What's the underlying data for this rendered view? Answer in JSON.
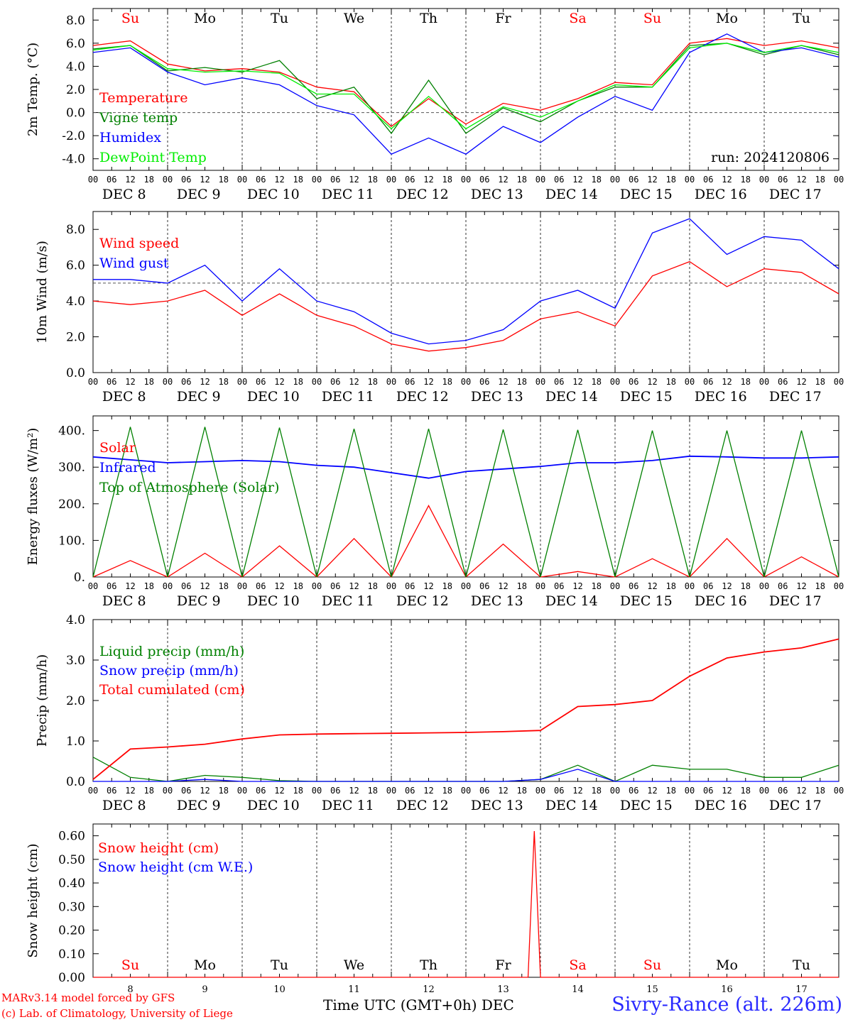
{
  "chart_data": [
    {
      "type": "line",
      "ylabel": "2m Temp. (°C)",
      "ylim": [
        -5.0,
        9.0
      ],
      "yticks": [
        "8.0",
        "6.0",
        "4.0",
        "2.0",
        "0.0",
        "-2.0",
        "-4.0"
      ],
      "ytick_values": [
        8,
        6,
        4,
        2,
        0,
        -2,
        -4
      ],
      "ref_line": 0,
      "day_labels_top": [
        "Su",
        "Mo",
        "Tu",
        "We",
        "Th",
        "Fr",
        "Sa",
        "Su",
        "Mo",
        "Tu"
      ],
      "day_label_colors": [
        "#ff0000",
        "#000000",
        "#000000",
        "#000000",
        "#000000",
        "#000000",
        "#ff0000",
        "#ff0000",
        "#000000",
        "#000000"
      ],
      "annotation": "run: 2024120806",
      "x": [
        "DEC 8 00",
        "DEC 8 12",
        "DEC 9 00",
        "DEC 9 12",
        "DEC 10 00",
        "DEC 10 12",
        "DEC 11 00",
        "DEC 11 12",
        "DEC 12 00",
        "DEC 12 12",
        "DEC 13 00",
        "DEC 13 12",
        "DEC 14 00",
        "DEC 14 12",
        "DEC 15 00",
        "DEC 15 12",
        "DEC 16 00",
        "DEC 16 12",
        "DEC 17 00",
        "DEC 17 12",
        "DEC 18 00"
      ],
      "series": [
        {
          "name": "Temperature",
          "color": "#ff0000",
          "values": [
            5.8,
            6.2,
            4.2,
            3.6,
            3.8,
            3.5,
            2.2,
            1.8,
            -1.2,
            1.2,
            -1.0,
            0.8,
            0.2,
            1.2,
            2.6,
            2.4,
            6.0,
            6.4,
            5.8,
            6.2,
            5.6
          ]
        },
        {
          "name": "Vigne temp",
          "color": "#008000",
          "values": [
            5.5,
            5.8,
            3.6,
            3.9,
            3.5,
            4.5,
            1.2,
            2.2,
            -1.8,
            2.8,
            -1.8,
            0.4,
            -0.8,
            1.0,
            2.2,
            2.2,
            5.8,
            6.0,
            5.0,
            5.8,
            5.0
          ]
        },
        {
          "name": "Humidex",
          "color": "#0000ff",
          "values": [
            5.2,
            5.6,
            3.5,
            2.4,
            3.0,
            2.4,
            0.6,
            -0.2,
            -3.6,
            -2.2,
            -3.6,
            -1.2,
            -2.6,
            -0.4,
            1.4,
            0.2,
            5.2,
            6.8,
            5.2,
            5.6,
            4.8
          ]
        },
        {
          "name": "DewPoint Temp",
          "color": "#00ee00",
          "values": [
            5.4,
            5.8,
            3.8,
            3.5,
            3.6,
            3.4,
            1.6,
            1.6,
            -1.4,
            1.4,
            -1.4,
            0.5,
            -0.4,
            1.0,
            2.4,
            2.2,
            5.6,
            6.0,
            5.2,
            5.8,
            5.2
          ]
        }
      ]
    },
    {
      "type": "line",
      "ylabel": "10m Wind (m/s)",
      "ylim": [
        0.0,
        9.0
      ],
      "yticks": [
        "8.0",
        "6.0",
        "4.0",
        "2.0",
        "0.0"
      ],
      "ytick_values": [
        8,
        6,
        4,
        2,
        0
      ],
      "ref_line": 5,
      "x": [
        "DEC 8 00",
        "DEC 8 12",
        "DEC 9 00",
        "DEC 9 12",
        "DEC 10 00",
        "DEC 10 12",
        "DEC 11 00",
        "DEC 11 12",
        "DEC 12 00",
        "DEC 12 12",
        "DEC 13 00",
        "DEC 13 12",
        "DEC 14 00",
        "DEC 14 12",
        "DEC 15 00",
        "DEC 15 12",
        "DEC 16 00",
        "DEC 16 12",
        "DEC 17 00",
        "DEC 17 12",
        "DEC 18 00"
      ],
      "series": [
        {
          "name": "Wind speed",
          "color": "#ff0000",
          "values": [
            4.0,
            3.8,
            4.0,
            4.6,
            3.2,
            4.4,
            3.2,
            2.6,
            1.6,
            1.2,
            1.4,
            1.8,
            3.0,
            3.4,
            2.6,
            5.4,
            6.2,
            4.8,
            5.8,
            5.6,
            4.4
          ]
        },
        {
          "name": "Wind gust",
          "color": "#0000ff",
          "values": [
            5.2,
            5.2,
            5.0,
            6.0,
            4.0,
            5.8,
            4.0,
            3.4,
            2.2,
            1.6,
            1.8,
            2.4,
            4.0,
            4.6,
            3.6,
            7.8,
            8.6,
            6.6,
            7.6,
            7.4,
            5.8
          ]
        }
      ]
    },
    {
      "type": "line",
      "ylabel": "Energy fluxes (W/m²)",
      "ylim": [
        0,
        440
      ],
      "yticks": [
        "400.",
        "300.",
        "200.",
        "100.",
        "0."
      ],
      "ytick_values": [
        400,
        300,
        200,
        100,
        0
      ],
      "x": [
        "DEC 8 00",
        "DEC 8 12",
        "DEC 9 00",
        "DEC 9 12",
        "DEC 10 00",
        "DEC 10 12",
        "DEC 11 00",
        "DEC 11 12",
        "DEC 12 00",
        "DEC 12 12",
        "DEC 13 00",
        "DEC 13 12",
        "DEC 14 00",
        "DEC 14 12",
        "DEC 15 00",
        "DEC 15 12",
        "DEC 16 00",
        "DEC 16 12",
        "DEC 17 00",
        "DEC 17 12",
        "DEC 18 00"
      ],
      "series": [
        {
          "name": "Solar",
          "color": "#ff0000",
          "values": [
            0,
            45,
            0,
            65,
            0,
            85,
            0,
            105,
            0,
            195,
            0,
            90,
            0,
            15,
            0,
            50,
            0,
            105,
            0,
            55,
            0
          ]
        },
        {
          "name": "Infrared",
          "color": "#0000ff",
          "values": [
            328,
            320,
            312,
            315,
            318,
            315,
            305,
            300,
            285,
            270,
            288,
            295,
            302,
            312,
            312,
            318,
            330,
            328,
            325,
            325,
            328
          ]
        },
        {
          "name": "Top of Atmosphere (Solar)",
          "color": "#008000",
          "values": [
            0,
            410,
            0,
            410,
            0,
            408,
            0,
            405,
            0,
            405,
            0,
            403,
            0,
            402,
            0,
            400,
            0,
            400,
            0,
            400,
            0
          ]
        }
      ]
    },
    {
      "type": "line",
      "ylabel": "Precip (mm/h)",
      "ylim": [
        0.0,
        4.0
      ],
      "yticks": [
        "4.0",
        "3.0",
        "2.0",
        "1.0",
        "0.0"
      ],
      "ytick_values": [
        4,
        3,
        2,
        1,
        0
      ],
      "x": [
        "DEC 8 00",
        "DEC 8 12",
        "DEC 9 00",
        "DEC 9 12",
        "DEC 10 00",
        "DEC 10 12",
        "DEC 11 00",
        "DEC 11 12",
        "DEC 12 00",
        "DEC 12 12",
        "DEC 13 00",
        "DEC 13 12",
        "DEC 14 00",
        "DEC 14 12",
        "DEC 15 00",
        "DEC 15 12",
        "DEC 16 00",
        "DEC 16 12",
        "DEC 17 00",
        "DEC 17 12",
        "DEC 18 00"
      ],
      "series": [
        {
          "name": "Liquid precip (mm/h)",
          "color": "#008000",
          "values": [
            0.6,
            0.1,
            0.0,
            0.15,
            0.1,
            0.02,
            0.0,
            0.0,
            0.0,
            0.0,
            0.0,
            0.0,
            0.05,
            0.4,
            0.0,
            0.4,
            0.3,
            0.3,
            0.1,
            0.1,
            0.4
          ]
        },
        {
          "name": "Snow precip (mm/h)",
          "color": "#0000ff",
          "values": [
            0,
            0,
            0,
            0.05,
            0,
            0,
            0,
            0,
            0,
            0,
            0,
            0,
            0.05,
            0.3,
            0,
            0,
            0,
            0,
            0,
            0,
            0
          ]
        },
        {
          "name": "Total cumulated (cm)",
          "color": "#ff0000",
          "values": [
            0.05,
            0.8,
            0.85,
            0.92,
            1.05,
            1.15,
            1.17,
            1.18,
            1.19,
            1.2,
            1.21,
            1.23,
            1.26,
            1.85,
            1.9,
            2.0,
            2.6,
            3.05,
            3.2,
            3.3,
            3.52
          ]
        }
      ]
    },
    {
      "type": "line",
      "ylabel": "Snow height (cm)",
      "ylim": [
        0.0,
        0.65
      ],
      "yticks": [
        "0.60",
        "0.50",
        "0.40",
        "0.30",
        "0.20",
        "0.10",
        "0.00"
      ],
      "ytick_values": [
        0.6,
        0.5,
        0.4,
        0.3,
        0.2,
        0.1,
        0.0
      ],
      "day_labels_bottom": [
        "Su",
        "Mo",
        "Tu",
        "We",
        "Th",
        "Fr",
        "Sa",
        "Su",
        "Mo",
        "Tu"
      ],
      "day_label_colors": [
        "#ff0000",
        "#000000",
        "#000000",
        "#000000",
        "#000000",
        "#000000",
        "#ff0000",
        "#ff0000",
        "#000000",
        "#000000"
      ],
      "day_numbers": [
        "8",
        "9",
        "10",
        "11",
        "12",
        "13",
        "14",
        "15",
        "16",
        "17"
      ],
      "x_hours": [
        0,
        138,
        140,
        142,
        144,
        146,
        240
      ],
      "series": [
        {
          "name": "Snow height (cm)",
          "color": "#ff0000",
          "values": [
            0,
            0,
            0,
            0.62,
            0,
            0,
            0
          ]
        },
        {
          "name": "Snow height (cm W.E.)",
          "color": "#0000ff",
          "values": []
        }
      ]
    }
  ],
  "shared_x": {
    "hour_ticks": [
      "00",
      "06",
      "12",
      "18"
    ],
    "end_tick": "00",
    "date_labels": [
      "DEC  8",
      "DEC  9",
      "DEC 10",
      "DEC 11",
      "DEC 12",
      "DEC 13",
      "DEC 14",
      "DEC 15",
      "DEC 16",
      "DEC 17"
    ]
  },
  "footer": {
    "credit_line1": "MARv3.14 model forced by GFS",
    "credit_line2": "(c) Lab. of Climatology, University of Liege",
    "x_title": "Time UTC (GMT+0h) DEC",
    "station": "Sivry-Rance (alt. 226m)"
  }
}
